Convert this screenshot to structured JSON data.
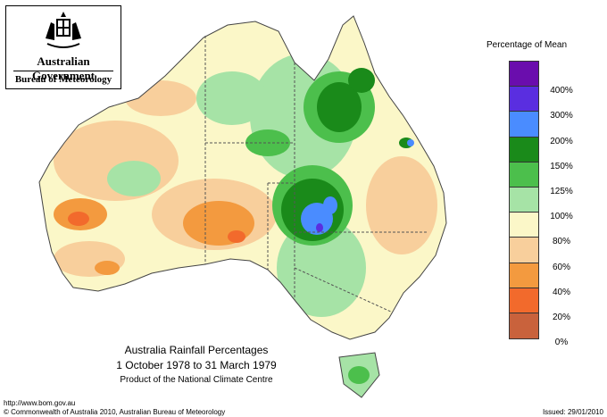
{
  "header": {
    "government": "Australian Government",
    "bureau": "Bureau of Meteorology"
  },
  "legend": {
    "title": "Percentage of Mean",
    "categories": [
      {
        "label": "400%",
        "color": "#6a0dad"
      },
      {
        "label": "300%",
        "color": "#5a2ee0"
      },
      {
        "label": "200%",
        "color": "#4a8cff"
      },
      {
        "label": "150%",
        "color": "#1a8a1a"
      },
      {
        "label": "125%",
        "color": "#4cbf4c"
      },
      {
        "label": "100%",
        "color": "#a6e3a6"
      },
      {
        "label": "80%",
        "color": "#fbf7c8"
      },
      {
        "label": "60%",
        "color": "#f8cf9c"
      },
      {
        "label": "40%",
        "color": "#f39a3f"
      },
      {
        "label": "20%",
        "color": "#f26a2c"
      },
      {
        "label": "0%",
        "color": "#c9623c"
      }
    ]
  },
  "map_title": {
    "line1": "Australia Rainfall Percentages",
    "line2": "1 October 1978 to 31 March 1979",
    "line3": "Product of the National Climate Centre"
  },
  "footer": {
    "url": "http://www.bom.gov.au",
    "copyright": "© Commonwealth of Australia 2010, Australian Bureau of Meteorology",
    "issued": "Issued: 29/01/2010"
  }
}
